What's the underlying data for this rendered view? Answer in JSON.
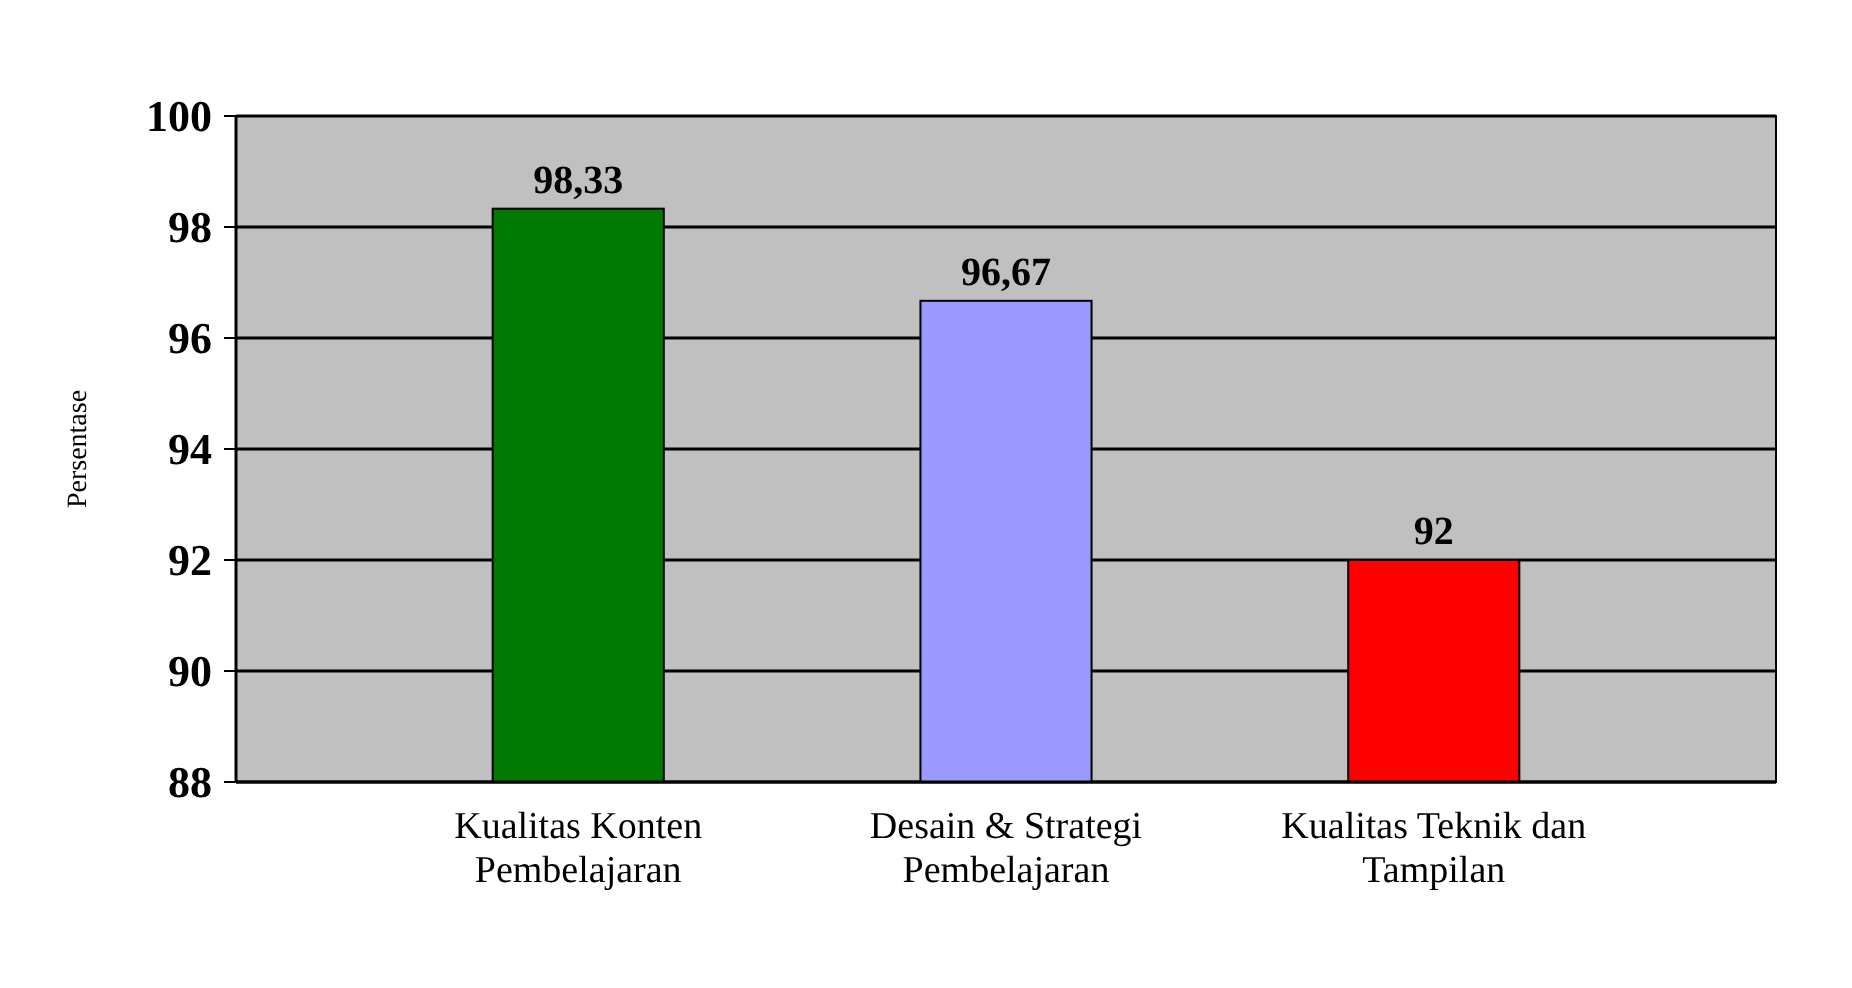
{
  "chart_data": {
    "type": "bar",
    "ylabel": "Persentase",
    "categories": [
      "Kualitas Konten Pembelajaran",
      "Desain & Strategi Pembelajaran",
      "Kualitas Teknik dan Tampilan"
    ],
    "values": [
      98.33,
      96.67,
      92
    ],
    "colors": [
      "#007a00",
      "#9999ff",
      "#ff0000"
    ],
    "value_labels": [
      "98,33",
      "96,67",
      "92"
    ],
    "ylim": [
      88,
      100
    ],
    "yticks": [
      88,
      90,
      92,
      94,
      96,
      98,
      100
    ],
    "grid": true
  }
}
